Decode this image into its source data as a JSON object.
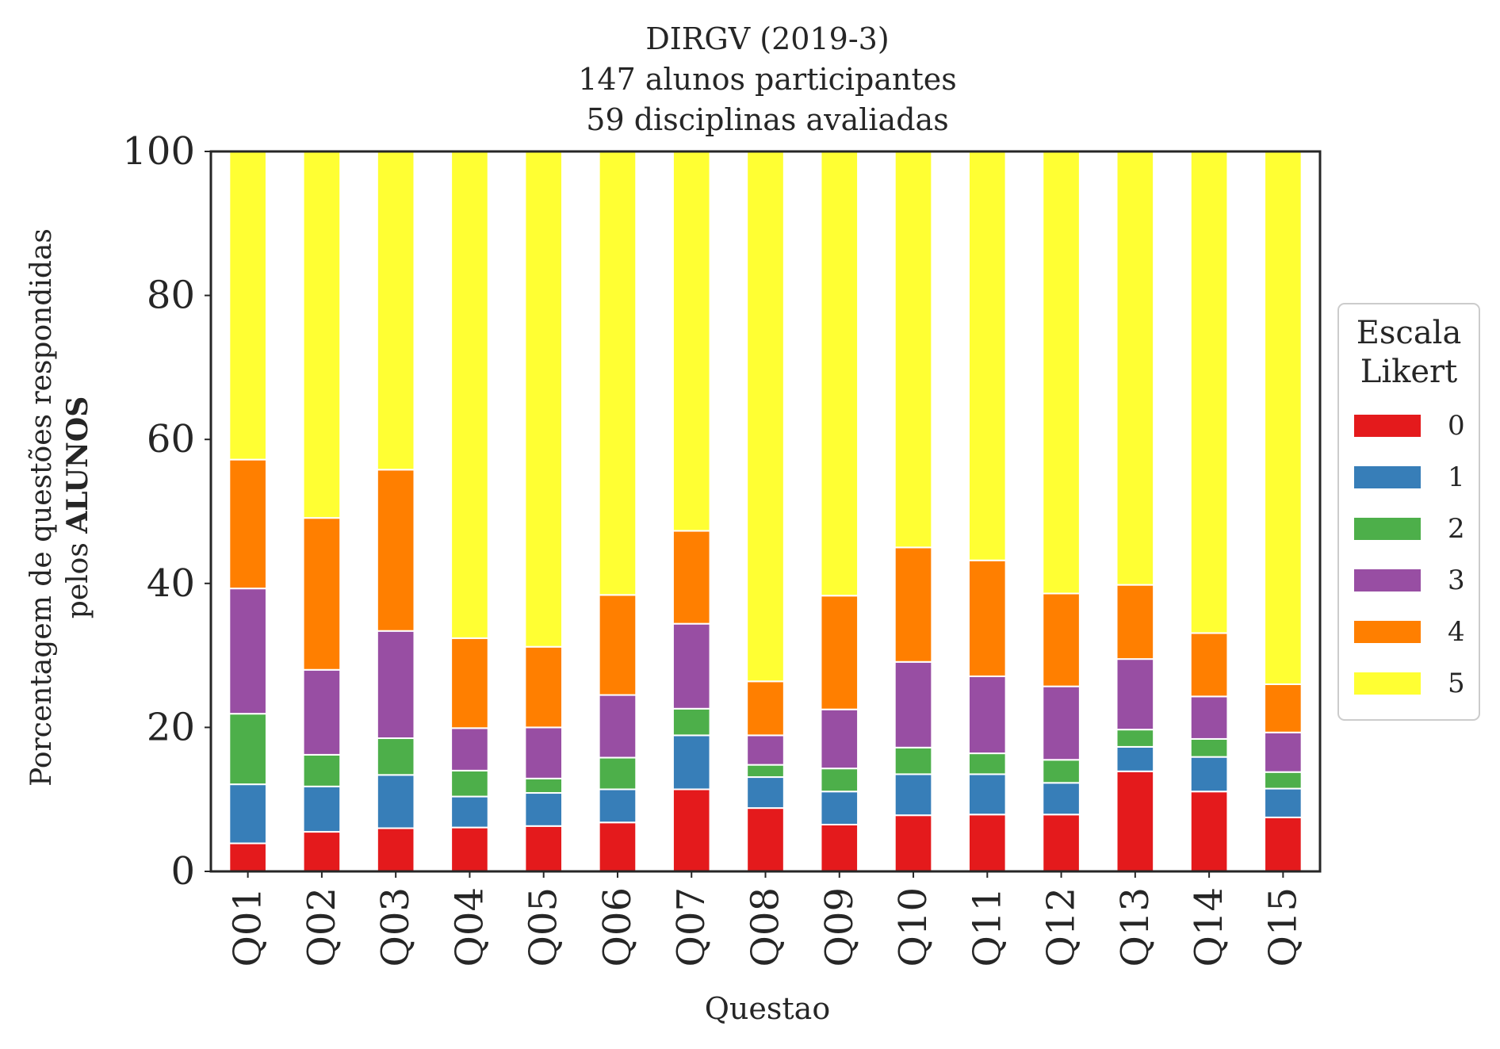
{
  "chart_data": {
    "type": "bar",
    "stacked": true,
    "title": [
      "DIRGV (2019-3)",
      "147 alunos participantes",
      "59 disciplinas avaliadas"
    ],
    "ylabel_line1": "Porcentagem de questões respondidas",
    "ylabel_line2_prefix": "pelos ",
    "ylabel_line2_bold": "ALUNOS",
    "xlabel": "Questao",
    "ylim": [
      0,
      100
    ],
    "yticks": [
      0,
      20,
      40,
      60,
      80,
      100
    ],
    "categories": [
      "Q01",
      "Q02",
      "Q03",
      "Q04",
      "Q05",
      "Q06",
      "Q07",
      "Q08",
      "Q09",
      "Q10",
      "Q11",
      "Q12",
      "Q13",
      "Q14",
      "Q15"
    ],
    "legend": {
      "title": [
        "Escala",
        "Likert"
      ],
      "placement": "center-right, outside"
    },
    "series": [
      {
        "name": "0",
        "color": "#e41a1c",
        "values": [
          3.9,
          5.5,
          6.0,
          6.1,
          6.3,
          6.8,
          11.4,
          8.8,
          6.5,
          7.8,
          7.9,
          7.9,
          13.9,
          11.1,
          7.5
        ]
      },
      {
        "name": "1",
        "color": "#377eb8",
        "values": [
          8.2,
          6.3,
          7.4,
          4.3,
          4.6,
          4.6,
          7.5,
          4.3,
          4.6,
          5.7,
          5.6,
          4.4,
          3.4,
          4.8,
          4.0
        ]
      },
      {
        "name": "2",
        "color": "#4daf4a",
        "values": [
          9.8,
          4.4,
          5.1,
          3.6,
          2.0,
          4.4,
          3.7,
          1.7,
          3.2,
          3.7,
          2.9,
          3.2,
          2.4,
          2.5,
          2.3
        ]
      },
      {
        "name": "3",
        "color": "#984ea3",
        "values": [
          17.4,
          11.8,
          14.9,
          5.9,
          7.1,
          8.7,
          11.8,
          4.1,
          8.2,
          11.9,
          10.7,
          10.2,
          9.8,
          5.9,
          5.5
        ]
      },
      {
        "name": "4",
        "color": "#ff7f00",
        "values": [
          17.9,
          21.1,
          22.4,
          12.5,
          11.2,
          13.9,
          12.9,
          7.5,
          15.8,
          15.9,
          16.1,
          12.9,
          10.3,
          8.8,
          6.7
        ]
      },
      {
        "name": "5",
        "color": "#ffff33",
        "values": [
          42.8,
          50.9,
          44.2,
          67.6,
          68.8,
          61.6,
          52.7,
          73.6,
          61.7,
          55.0,
          56.8,
          61.4,
          60.2,
          66.9,
          74.0
        ]
      }
    ]
  }
}
